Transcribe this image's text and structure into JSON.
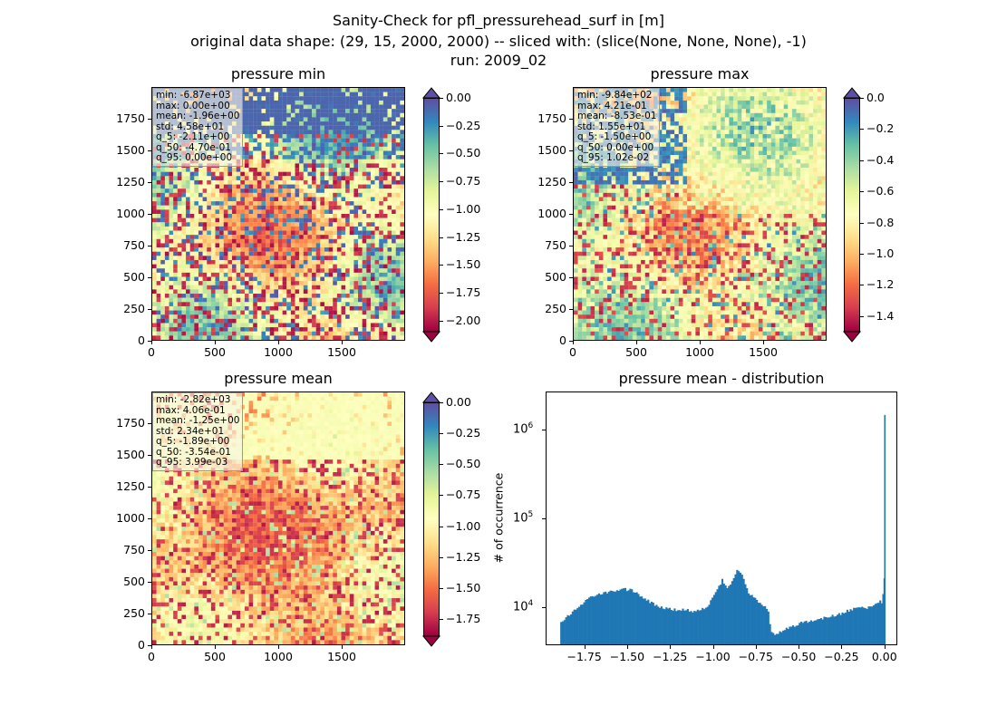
{
  "figure": {
    "suptitle": [
      "Sanity-Check for pfl_pressurehead_surf in [m]",
      "original data shape: (29, 15, 2000, 2000) -- sliced with: (slice(None, None, None), -1)",
      "run: 2009_02"
    ]
  },
  "chart_data": [
    {
      "type": "heatmap",
      "title": "pressure min",
      "x_ticks": [
        "0",
        "500",
        "1000",
        "1500"
      ],
      "y_ticks": [
        "0",
        "250",
        "500",
        "750",
        "1000",
        "1250",
        "1500",
        "1750"
      ],
      "xlim": [
        0,
        2000
      ],
      "ylim": [
        0,
        2000
      ],
      "colormap": "Spectral",
      "color_range": [
        -2.1,
        0.0
      ],
      "colorbar_ticks": [
        "0.00",
        "−0.25",
        "−0.50",
        "−0.75",
        "−1.00",
        "−1.25",
        "−1.50",
        "−1.75",
        "−2.00"
      ],
      "colorbar_extend": "both",
      "stats": [
        "min: -6.87e+03",
        "max: 0.00e+00",
        "mean: -1.96e+00",
        "std: 4.58e+01",
        "q_5: -2.11e+00",
        "q_50: -4.70e-01",
        "q_95: 0.00e+00"
      ]
    },
    {
      "type": "heatmap",
      "title": "pressure max",
      "x_ticks": [
        "0",
        "500",
        "1000",
        "1500"
      ],
      "y_ticks": [
        "0",
        "250",
        "500",
        "750",
        "1000",
        "1250",
        "1500",
        "1750"
      ],
      "xlim": [
        0,
        2000
      ],
      "ylim": [
        0,
        2000
      ],
      "colormap": "Spectral",
      "color_range": [
        -1.5,
        0.0
      ],
      "colorbar_ticks": [
        "0.0",
        "−0.2",
        "−0.4",
        "−0.6",
        "−0.8",
        "−1.0",
        "−1.2",
        "−1.4"
      ],
      "colorbar_extend": "both",
      "stats": [
        "min: -9.84e+02",
        "max: 4.21e-01",
        "mean: -8.53e-01",
        "std: 1.55e+01",
        "q_5: -1.50e+00",
        "q_50: 0.00e+00",
        "q_95: 1.02e-02"
      ]
    },
    {
      "type": "heatmap",
      "title": "pressure mean",
      "x_ticks": [
        "0",
        "500",
        "1000",
        "1500"
      ],
      "y_ticks": [
        "0",
        "250",
        "500",
        "750",
        "1000",
        "1250",
        "1500",
        "1750"
      ],
      "xlim": [
        0,
        2000
      ],
      "ylim": [
        0,
        2000
      ],
      "colormap": "Spectral",
      "color_range": [
        -1.89,
        0.0
      ],
      "colorbar_ticks": [
        "0.00",
        "−0.25",
        "−0.50",
        "−0.75",
        "−1.00",
        "−1.25",
        "−1.50",
        "−1.75"
      ],
      "colorbar_extend": "both",
      "stats": [
        "min: -2.82e+03",
        "max: 4.06e-01",
        "mean: -1.25e+00",
        "std: 2.34e+01",
        "q_5: -1.89e+00",
        "q_50: -3.54e-01",
        "q_95: 3.99e-03"
      ]
    },
    {
      "type": "bar",
      "title": "pressure mean - distribution",
      "ylabel": "# of occurrence",
      "xlabel": "",
      "yscale": "log",
      "x_ticks": [
        "−1.75",
        "−1.50",
        "−1.25",
        "−1.00",
        "−0.75",
        "−0.50",
        "−0.25",
        "0.00"
      ],
      "y_ticks": [
        "10^4",
        "10^5",
        "10^6"
      ],
      "xlim": [
        -1.97,
        0.07
      ],
      "ylim": [
        3800,
        2600000
      ],
      "color": "#1f77b4",
      "points": [
        [
          -1.89,
          6600
        ],
        [
          -1.85,
          8000
        ],
        [
          -1.8,
          9500
        ],
        [
          -1.75,
          11500
        ],
        [
          -1.72,
          13000
        ],
        [
          -1.68,
          14000
        ],
        [
          -1.64,
          14500
        ],
        [
          -1.6,
          15000
        ],
        [
          -1.56,
          15500
        ],
        [
          -1.52,
          15800
        ],
        [
          -1.48,
          15600
        ],
        [
          -1.44,
          14000
        ],
        [
          -1.4,
          12500
        ],
        [
          -1.36,
          11000
        ],
        [
          -1.32,
          10200
        ],
        [
          -1.28,
          9700
        ],
        [
          -1.24,
          9400
        ],
        [
          -1.2,
          9200
        ],
        [
          -1.16,
          9300
        ],
        [
          -1.12,
          9000
        ],
        [
          -1.08,
          9200
        ],
        [
          -1.04,
          10000
        ],
        [
          -1.01,
          12500
        ],
        [
          -0.98,
          16000
        ],
        [
          -0.95,
          20000
        ],
        [
          -0.92,
          16500
        ],
        [
          -0.89,
          20000
        ],
        [
          -0.86,
          27000
        ],
        [
          -0.83,
          22000
        ],
        [
          -0.8,
          15000
        ],
        [
          -0.77,
          13000
        ],
        [
          -0.74,
          11500
        ],
        [
          -0.71,
          10500
        ],
        [
          -0.68,
          8500
        ],
        [
          -0.665,
          5200
        ],
        [
          -0.64,
          5000
        ],
        [
          -0.6,
          5400
        ],
        [
          -0.56,
          5900
        ],
        [
          -0.52,
          6300
        ],
        [
          -0.48,
          6700
        ],
        [
          -0.44,
          7000
        ],
        [
          -0.4,
          7300
        ],
        [
          -0.36,
          7500
        ],
        [
          -0.32,
          7800
        ],
        [
          -0.28,
          8100
        ],
        [
          -0.24,
          8800
        ],
        [
          -0.2,
          9300
        ],
        [
          -0.16,
          9700
        ],
        [
          -0.12,
          9800
        ],
        [
          -0.08,
          10000
        ],
        [
          -0.04,
          11000
        ],
        [
          -0.015,
          14000
        ],
        [
          -0.005,
          21000
        ],
        [
          0.0,
          1450000
        ]
      ]
    }
  ]
}
